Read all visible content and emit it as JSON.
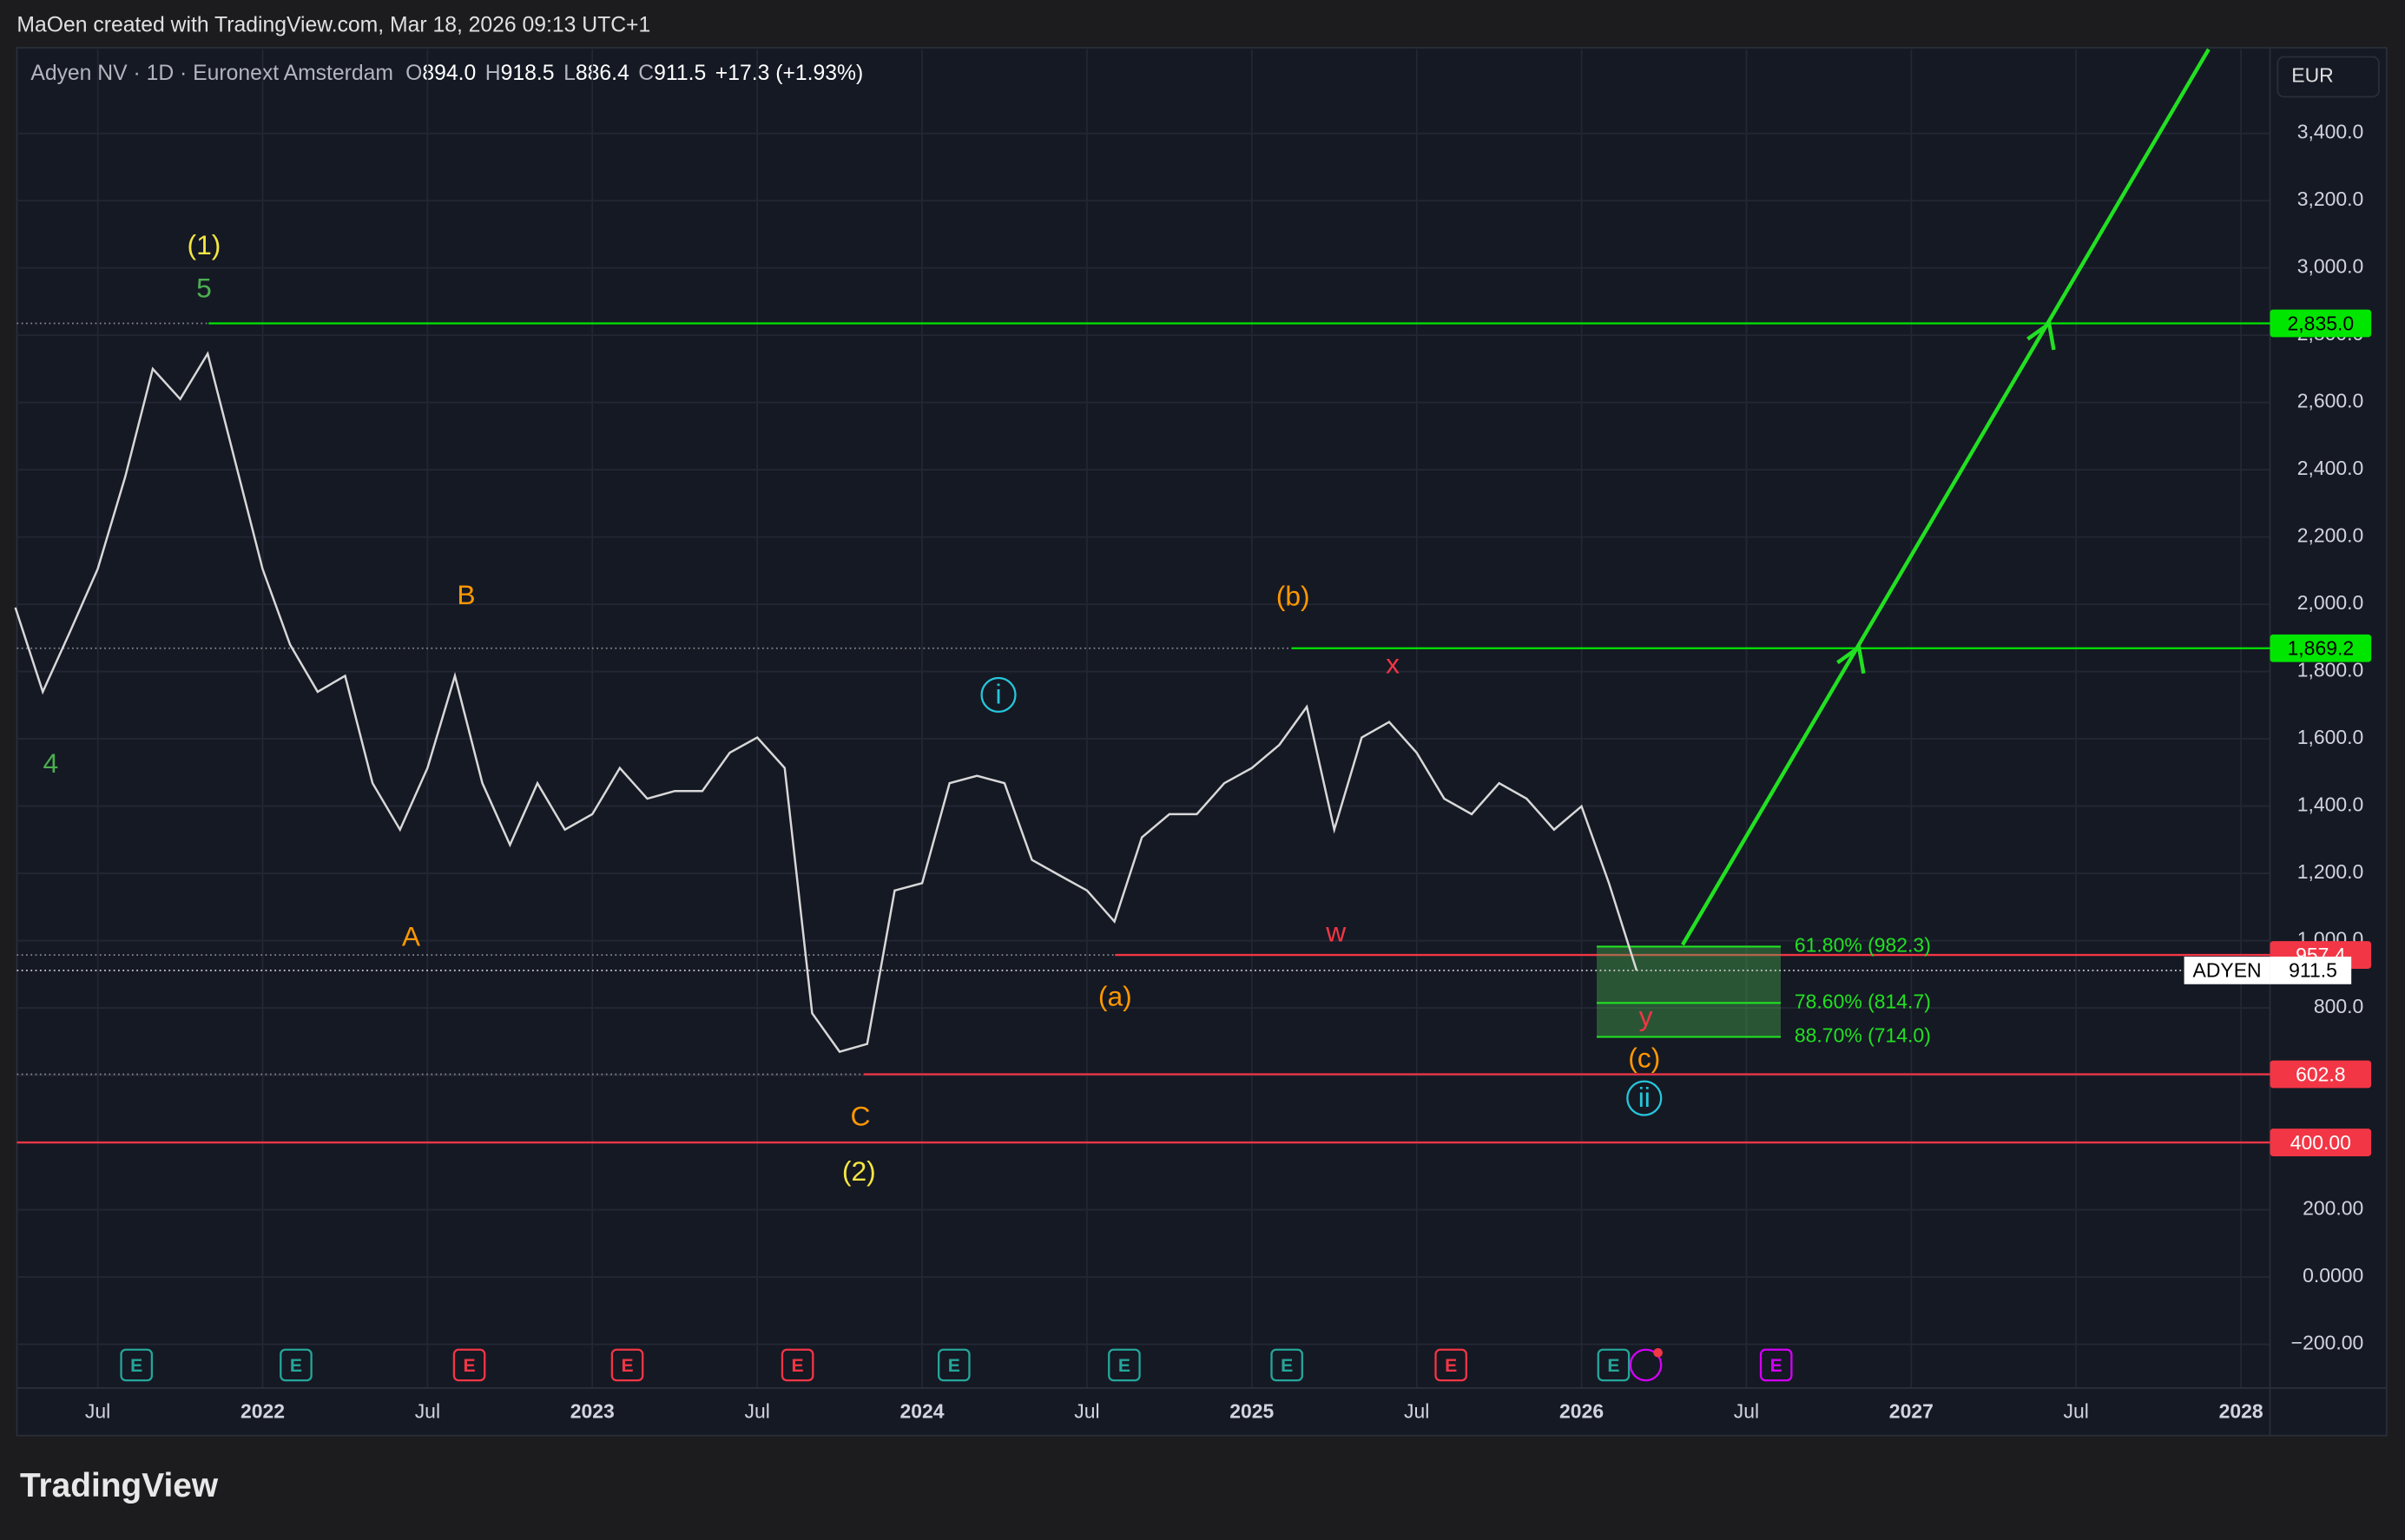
{
  "header": {
    "credit": "MaOen created with TradingView.com, Mar 18, 2026 09:13 UTC+1",
    "symbol": "Adyen NV · 1D · Euronext Amsterdam",
    "ohlc": [
      {
        "k": "O",
        "v": "894.0"
      },
      {
        "k": "H",
        "v": "918.5"
      },
      {
        "k": "L",
        "v": "886.4"
      },
      {
        "k": "C",
        "v": "911.5"
      }
    ],
    "change": "+17.3 (+1.93%)",
    "currency": "EUR"
  },
  "footer": {
    "brand": "TradingView"
  },
  "chart_data": {
    "type": "line",
    "grid": true,
    "x": [
      "2021-04",
      "2021-05",
      "2021-06",
      "2021-07",
      "2021-08",
      "2021-09",
      "2021-10",
      "2021-11",
      "2021-12",
      "2022-01",
      "2022-02",
      "2022-03",
      "2022-04",
      "2022-05",
      "2022-06",
      "2022-07",
      "2022-08",
      "2022-09",
      "2022-10",
      "2022-11",
      "2022-12",
      "2023-01",
      "2023-02",
      "2023-03",
      "2023-04",
      "2023-05",
      "2023-06",
      "2023-07",
      "2023-08",
      "2023-09",
      "2023-10",
      "2023-11",
      "2023-12",
      "2024-01",
      "2024-02",
      "2024-03",
      "2024-04",
      "2024-05",
      "2024-06",
      "2024-07",
      "2024-08",
      "2024-09",
      "2024-10",
      "2024-11",
      "2024-12",
      "2025-01",
      "2025-02",
      "2025-03",
      "2025-04",
      "2025-05",
      "2025-06",
      "2025-07",
      "2025-08",
      "2025-09",
      "2025-10",
      "2025-11",
      "2025-12",
      "2026-01",
      "2026-02",
      "2026-03"
    ],
    "series": [
      {
        "name": "ADYEN",
        "color": "#d8d8d8",
        "values": [
          1990,
          1740,
          1920,
          2105,
          2380,
          2700,
          2610,
          2745,
          2425,
          2105,
          1880,
          1740,
          1787,
          1468,
          1330,
          1513,
          1787,
          1468,
          1285,
          1468,
          1330,
          1376,
          1513,
          1422,
          1445,
          1445,
          1559,
          1604,
          1513,
          784,
          670,
          693,
          1149,
          1171,
          1468,
          1490,
          1468,
          1240,
          1194,
          1149,
          1057,
          1307,
          1376,
          1376,
          1468,
          1513,
          1582,
          1695,
          1330,
          1604,
          1650,
          1559,
          1422,
          1376,
          1468,
          1422,
          1330,
          1399,
          1171,
          911.5
        ]
      }
    ],
    "last_price": 911.5,
    "xlim": [
      "2021-04",
      "2028-02"
    ],
    "xticks": [
      {
        "value": "2021-07",
        "label": "Jul"
      },
      {
        "value": "2022-01",
        "label": "2022"
      },
      {
        "value": "2022-07",
        "label": "Jul"
      },
      {
        "value": "2023-01",
        "label": "2023"
      },
      {
        "value": "2023-07",
        "label": "Jul"
      },
      {
        "value": "2024-01",
        "label": "2024"
      },
      {
        "value": "2024-07",
        "label": "Jul"
      },
      {
        "value": "2025-01",
        "label": "2025"
      },
      {
        "value": "2025-07",
        "label": "Jul"
      },
      {
        "value": "2026-01",
        "label": "2026"
      },
      {
        "value": "2026-07",
        "label": "Jul"
      },
      {
        "value": "2027-01",
        "label": "2027"
      },
      {
        "value": "2027-07",
        "label": "Jul"
      },
      {
        "value": "2028-01",
        "label": "2028"
      }
    ],
    "ylim": [
      -330,
      3650
    ],
    "yticks": [
      {
        "value": 3400,
        "label": "3,400.0"
      },
      {
        "value": 3200,
        "label": "3,200.0"
      },
      {
        "value": 3000,
        "label": "3,000.0"
      },
      {
        "value": 2800,
        "label": "2,800.0"
      },
      {
        "value": 2600,
        "label": "2,600.0"
      },
      {
        "value": 2400,
        "label": "2,400.0"
      },
      {
        "value": 2200,
        "label": "2,200.0"
      },
      {
        "value": 2000,
        "label": "2,000.0"
      },
      {
        "value": 1800,
        "label": "1,800.0"
      },
      {
        "value": 1600,
        "label": "1,600.0"
      },
      {
        "value": 1400,
        "label": "1,400.0"
      },
      {
        "value": 1200,
        "label": "1,200.0"
      },
      {
        "value": 1000,
        "label": "1,000.0"
      },
      {
        "value": 800,
        "label": "800.0"
      },
      {
        "value": 600,
        "label": "600.0"
      },
      {
        "value": 400,
        "label": "400.0"
      },
      {
        "value": 200,
        "label": "200.00"
      },
      {
        "value": 0,
        "label": "0.0000"
      },
      {
        "value": -200,
        "label": "−200.00"
      }
    ],
    "levels": [
      {
        "value": 2835,
        "label": "2,835.0",
        "color": "#00e600"
      },
      {
        "value": 1869.2,
        "label": "1,869.2",
        "color": "#00e600"
      },
      {
        "value": 957.4,
        "label": "957.4",
        "color": "#f23645"
      },
      {
        "value": 602.8,
        "label": "602.8",
        "color": "#f23645"
      },
      {
        "value": 400,
        "label": "400.00",
        "color": "#f23645"
      }
    ],
    "fib": [
      {
        "value": 982.3,
        "label": "61.80% (982.3)"
      },
      {
        "value": 814.7,
        "label": "78.60% (814.7)"
      },
      {
        "value": 714.0,
        "label": "88.70% (714.0)"
      }
    ],
    "fib_color": "#4caf50",
    "annotations": [
      {
        "text": "(1)",
        "color": "#f5e642"
      },
      {
        "text": "5",
        "color": "#4caf50"
      },
      {
        "text": "4",
        "color": "#4caf50"
      },
      {
        "text": "B",
        "color": "#ff9800"
      },
      {
        "text": "A",
        "color": "#ff9800"
      },
      {
        "text": "C",
        "color": "#ff9800"
      },
      {
        "text": "(2)",
        "color": "#f5e642"
      },
      {
        "text": "(a)",
        "color": "#ff9800"
      },
      {
        "text": "(b)",
        "color": "#ff9800"
      },
      {
        "text": "i",
        "color": "#26c6da"
      },
      {
        "text": "w",
        "color": "#f23645"
      },
      {
        "text": "x",
        "color": "#f23645"
      },
      {
        "text": "y",
        "color": "#f23645"
      },
      {
        "text": "(c)",
        "color": "#ff9800"
      },
      {
        "text": "ii",
        "color": "#26c6da"
      }
    ],
    "earnings_marker": "E"
  }
}
